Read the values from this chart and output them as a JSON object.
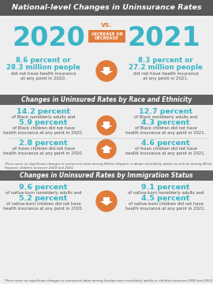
{
  "title": "National-level Changes in Uninsurance Rates",
  "title_bg": "#575757",
  "title_color": "#ffffff",
  "vs_color": "#e07b39",
  "year_color": "#3ab5c6",
  "year_2020": "2020",
  "year_2021": "2021",
  "increase_or_decrease_bg": "#e07b39",
  "increase_or_decrease_text": "INCREASE OR\nDECREASE",
  "national_2020_line1": "8.6 percent or",
  "national_2020_line2": "28.3 million people",
  "national_2020_sub": "did not have health insurance\nat any point in 2020.",
  "national_2021_line1": "8.3 percent or",
  "national_2021_line2": "27.2 million people",
  "national_2021_sub": "did not have health insurance\nat any point in 2021.",
  "section1_title": "Changes in Uninsured Rates by Race and Ethnicity",
  "section1_bg": "#606060",
  "race_2020_line1_pct": "14.2 percent",
  "race_2020_line1_sub": "of Black nonelderly adults and",
  "race_2020_line2_pct": "5.9 percent",
  "race_2020_line2_sub": "of Black children did not have\nhealth insurance at any point in 2020.",
  "race_2021_line1_pct": "12.7 percent",
  "race_2021_line1_sub": "of Black nonelderly adults and",
  "race_2021_line2_pct": "4.3 percent",
  "race_2021_line2_sub": "of Black children did not have\nhealth insurance at any point in 2021.",
  "race_2020_asian_pct": "2.8 percent",
  "race_2020_asian_sub": "of Asian children did not have\nhealth insurance at any point in 2020.",
  "race_2021_asian_pct": "4.6 percent",
  "race_2021_asian_sub": "of Asian children did not have\nhealth insurance at any point in 2021.",
  "race_footnote": "There were no significant changes in uninsured rates among White, Hispanic or Asian nonelderly adults as well as among White or\nHispanic children between 2020 and 2021.",
  "section2_title": "Changes in Uninsured Rates by Immigration Status",
  "section2_bg": "#606060",
  "imm_2020_line1_pct": "9.6 percent",
  "imm_2020_line1_sub": "of native-born nonelderly adults and",
  "imm_2020_line2_pct": "5.2 percent",
  "imm_2020_line2_sub": "of native-born children did not have\nhealth insurance at any point in 2020.",
  "imm_2021_line1_pct": "9.1 percent",
  "imm_2021_line1_sub": "of native-born nonelderly adults and",
  "imm_2021_line2_pct": "4.5 percent",
  "imm_2021_line2_sub": "of native-born children did not have\nhealth insurance at any point in 2021.",
  "imm_footnote": "There were no significant changes in uninsured rates among foreign-born nonelderly adults or children between 2020 and 2021.",
  "pct_color": "#3ab5c6",
  "sub_color": "#4d4d4d",
  "arrow_color": "#e07b39",
  "light_bg": "#eeeeee",
  "section_header_color": "#ffffff"
}
